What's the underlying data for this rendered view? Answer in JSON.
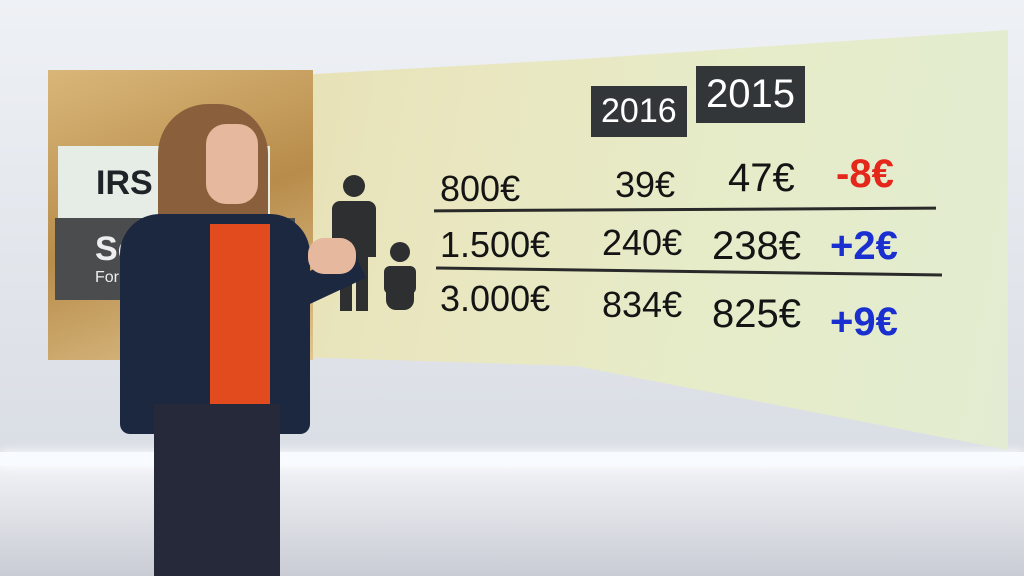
{
  "panel": {
    "title": "IRS",
    "subtitle": "Se",
    "subtitle2": "For"
  },
  "table": {
    "headers": [
      "2016",
      "2015"
    ],
    "rows": [
      {
        "income": "800€",
        "y2016": "39€",
        "y2015": "47€",
        "diff": "-8€",
        "diff_color": "#e5261b"
      },
      {
        "income": "1.500€",
        "y2016": "240€",
        "y2015": "238€",
        "diff": "+2€",
        "diff_color": "#1a2fd0"
      },
      {
        "income": "3.000€",
        "y2016": "834€",
        "y2015": "825€",
        "diff": "+9€",
        "diff_color": "#1a2fd0"
      }
    ]
  },
  "icons": [
    "adult-figure-icon",
    "baby-icon"
  ]
}
